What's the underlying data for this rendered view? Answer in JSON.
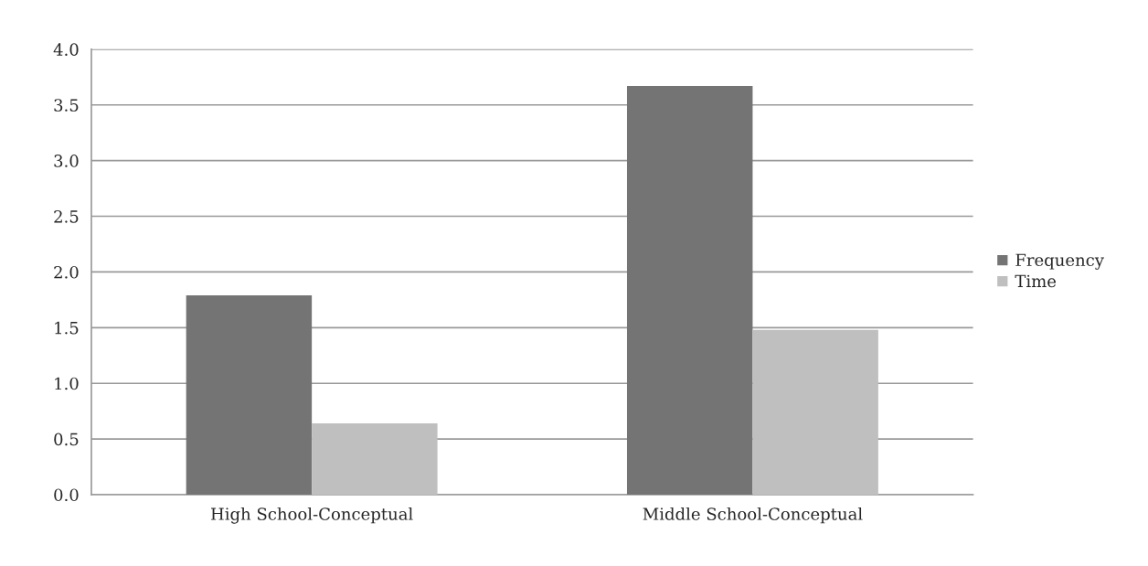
{
  "chart_data": {
    "type": "bar",
    "categories": [
      "High School-Conceptual",
      "Middle School-Conceptual"
    ],
    "series": [
      {
        "name": "Frequency",
        "color": "#747474",
        "values": [
          1.79,
          3.67
        ]
      },
      {
        "name": "Time",
        "color": "#bfbfbf",
        "values": [
          0.64,
          1.48
        ]
      }
    ],
    "ylim": [
      0,
      4
    ],
    "yticks": [
      {
        "value": 0,
        "label": "0.0"
      },
      {
        "value": 0.5,
        "label": "0.5"
      },
      {
        "value": 1,
        "label": "1.0"
      },
      {
        "value": 1.5,
        "label": "1.5"
      },
      {
        "value": 2,
        "label": "2.0"
      },
      {
        "value": 2.5,
        "label": "2.5"
      },
      {
        "value": 3,
        "label": "3.0"
      },
      {
        "value": 3.5,
        "label": "3.5"
      },
      {
        "value": 4,
        "label": "4.0"
      }
    ],
    "grid": "y",
    "legend": "right"
  }
}
